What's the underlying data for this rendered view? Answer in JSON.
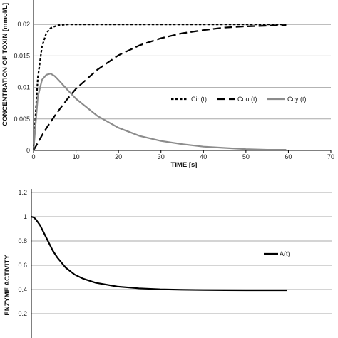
{
  "chart_data": [
    {
      "type": "line",
      "xlabel": "TIME [s]",
      "ylabel": "CONCENTRATION OF TOXIN [mmol/L]",
      "xlim": [
        0,
        70
      ],
      "ylim": [
        0,
        0.025
      ],
      "xticks": [
        "0",
        "10",
        "20",
        "30",
        "40",
        "50",
        "60",
        "70"
      ],
      "yticks": [
        "0",
        "0.005",
        "0.01",
        "0.015",
        "0.02"
      ],
      "grid": true,
      "legend_position": "right",
      "x": [
        0,
        1,
        2,
        3,
        4,
        5,
        6,
        8,
        10,
        15,
        20,
        25,
        30,
        35,
        40,
        45,
        50,
        55,
        59.5
      ],
      "series": [
        {
          "name": "Cin(t)",
          "color": "#000000",
          "dash": "short",
          "values": [
            0,
            0.0115,
            0.0165,
            0.0186,
            0.0194,
            0.0197,
            0.0199,
            0.02,
            0.02,
            0.02,
            0.02,
            0.02,
            0.02,
            0.02,
            0.02,
            0.02,
            0.02,
            0.02,
            0.02
          ]
        },
        {
          "name": "Cout(t)",
          "color": "#000000",
          "dash": "long",
          "values": [
            0,
            0.0012,
            0.0024,
            0.0035,
            0.0045,
            0.0055,
            0.0064,
            0.0082,
            0.0098,
            0.0128,
            0.0151,
            0.0167,
            0.0178,
            0.0186,
            0.0191,
            0.0195,
            0.0197,
            0.0198,
            0.0199
          ]
        },
        {
          "name": "Ccyt(t)",
          "color": "#8c8c8c",
          "dash": "solid",
          "values": [
            0,
            0.0085,
            0.0112,
            0.012,
            0.0122,
            0.0118,
            0.0111,
            0.0096,
            0.0082,
            0.0055,
            0.0036,
            0.0023,
            0.0015,
            0.001,
            0.0006,
            0.0004,
            0.0002,
            0.0001,
            0.0001
          ]
        }
      ]
    },
    {
      "type": "line",
      "xlabel": "",
      "ylabel": "ENZYME ACTIVITY",
      "ylim": [
        0,
        1.2
      ],
      "yticks": [
        "0.2",
        "0.4",
        "0.6",
        "0.8",
        "1",
        "1.2"
      ],
      "grid": true,
      "legend_position": "right",
      "x": [
        0,
        0.5,
        1,
        2,
        3,
        4,
        5,
        6,
        8,
        10,
        12,
        15,
        20,
        25,
        30,
        35,
        40,
        45,
        50,
        55,
        59.5
      ],
      "series": [
        {
          "name": "A(t)",
          "color": "#000000",
          "dash": "solid",
          "values": [
            1.0,
            0.995,
            0.98,
            0.93,
            0.86,
            0.79,
            0.72,
            0.665,
            0.58,
            0.525,
            0.49,
            0.455,
            0.425,
            0.41,
            0.402,
            0.398,
            0.396,
            0.395,
            0.394,
            0.394,
            0.394
          ]
        }
      ]
    }
  ]
}
